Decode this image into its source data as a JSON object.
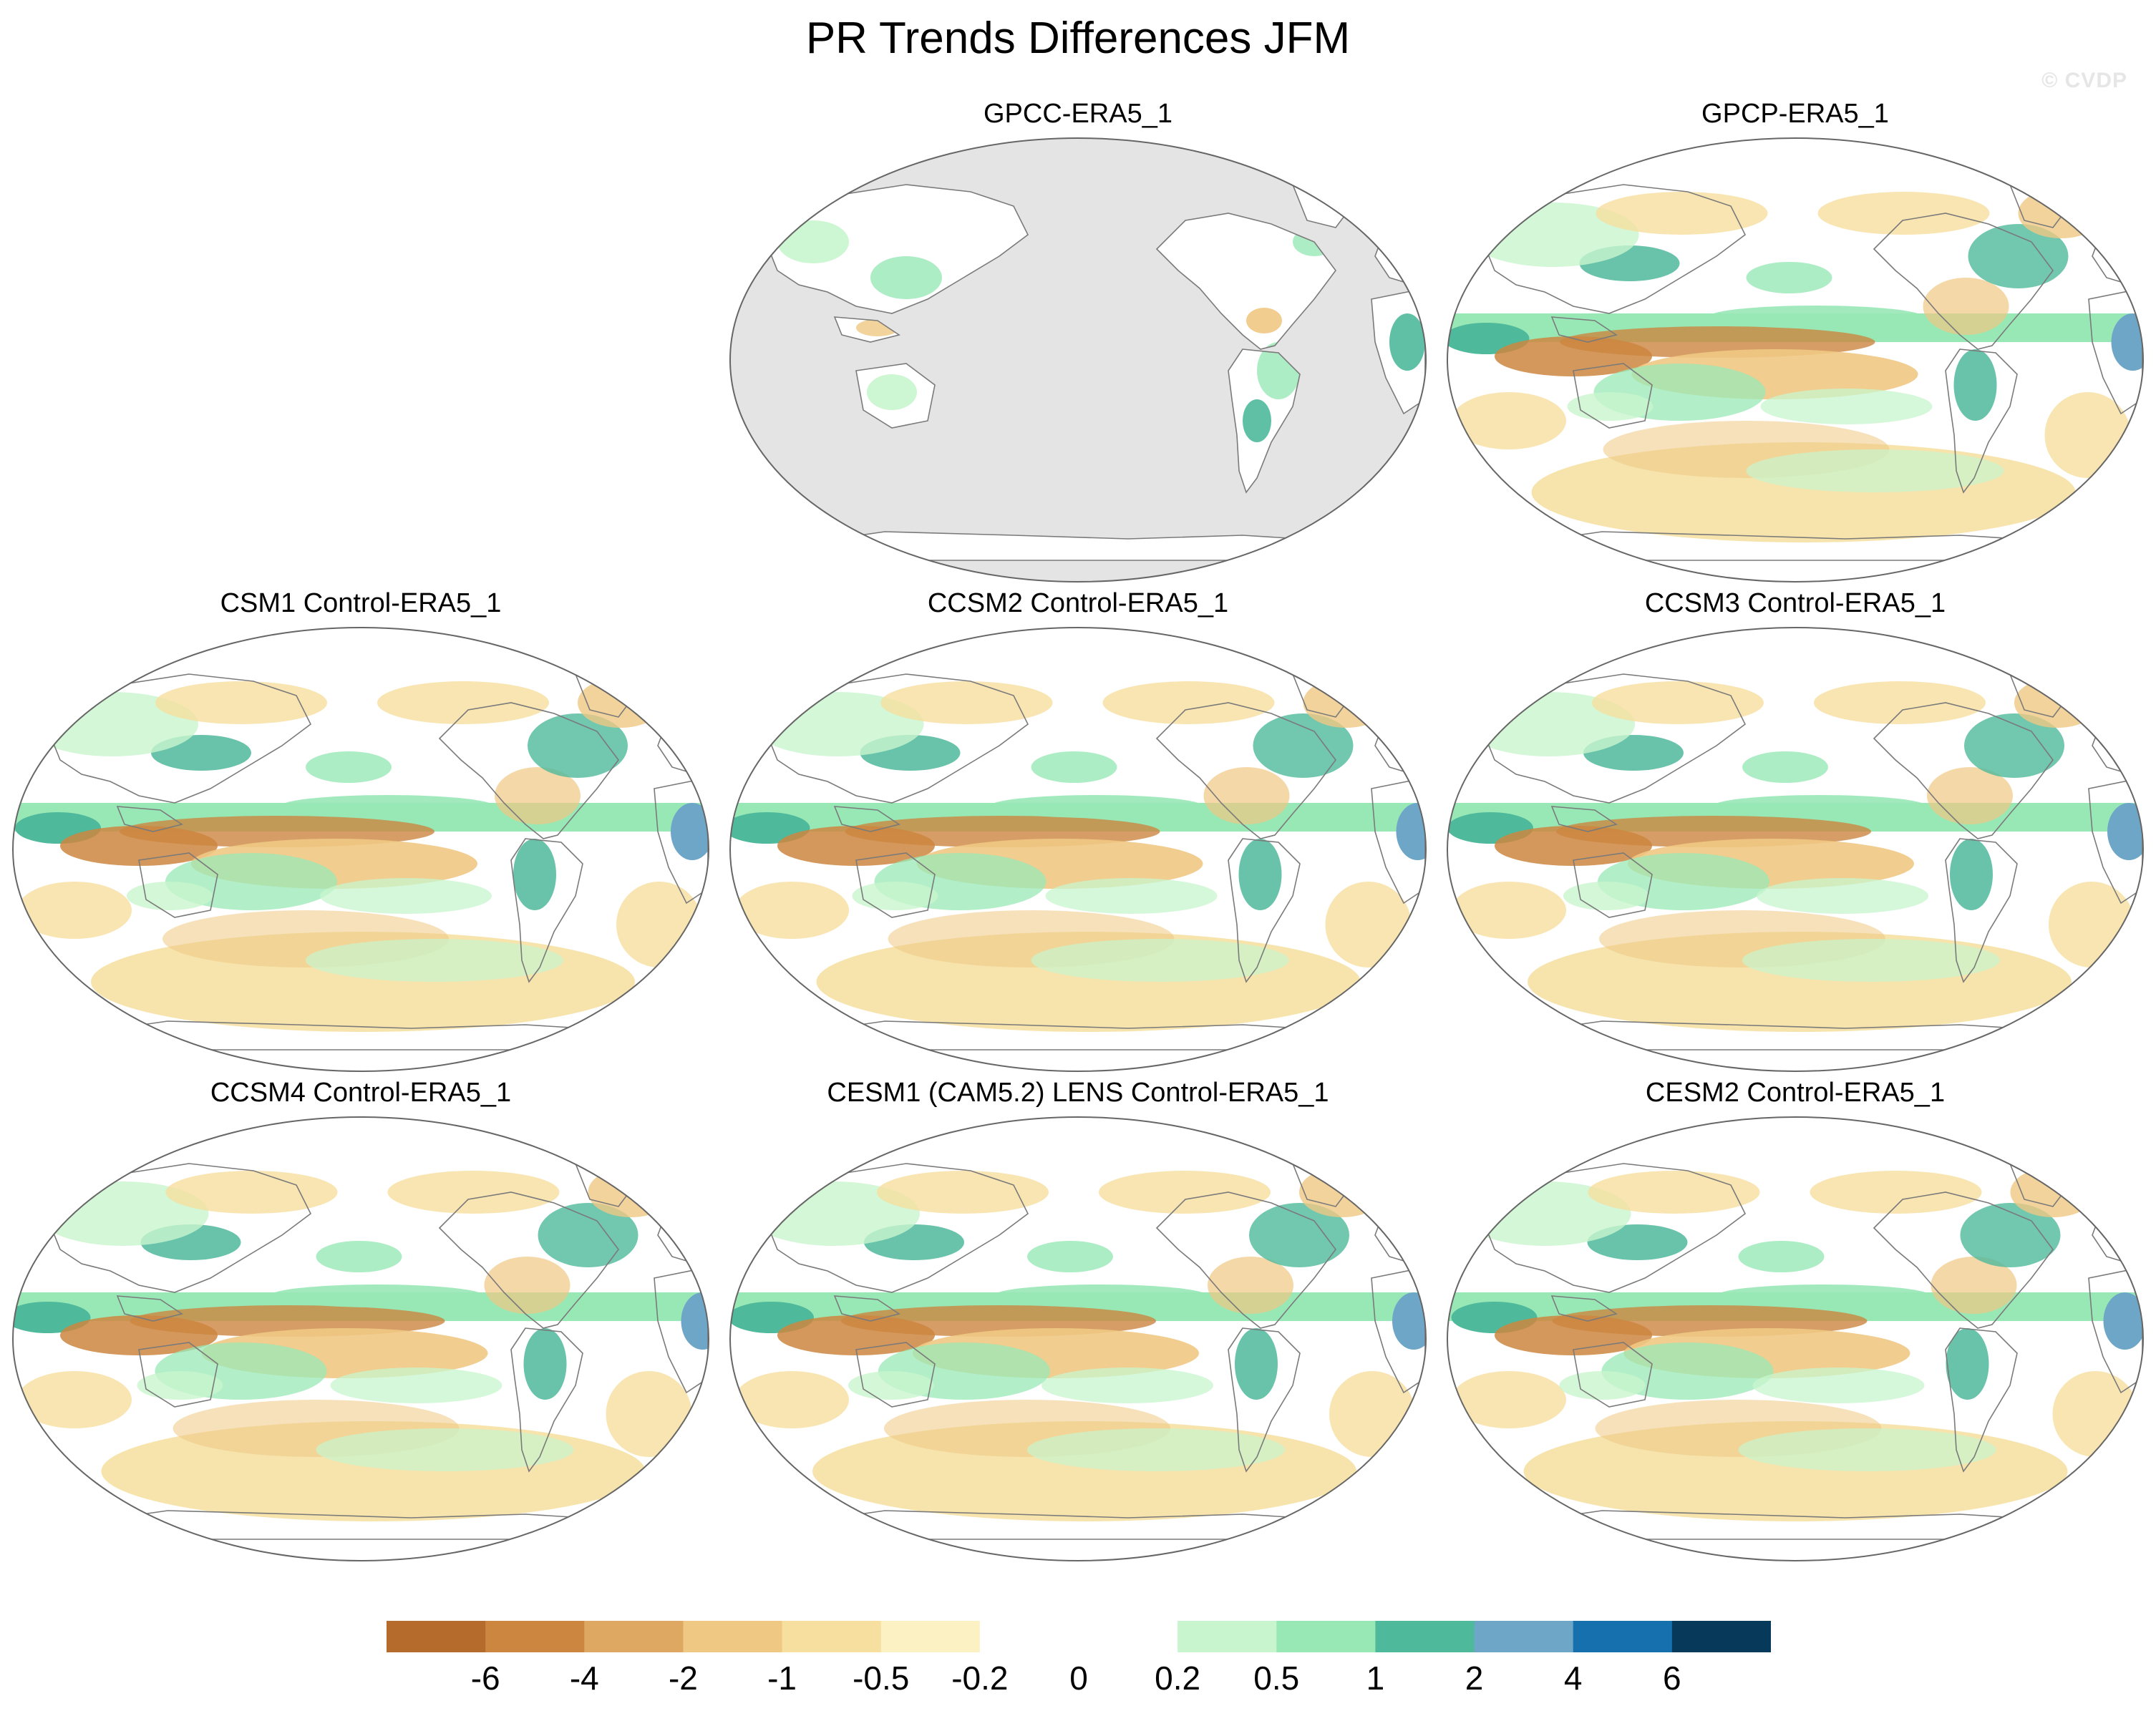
{
  "figure": {
    "title": "PR Trends Differences JFM",
    "watermark": "© CVDP"
  },
  "panels": [
    {
      "id": "gpcc",
      "title": "GPCC-ERA5_1",
      "land_only": true
    },
    {
      "id": "gpcp",
      "title": "GPCP-ERA5_1",
      "land_only": false
    },
    {
      "id": "csm1",
      "title": "CSM1 Control-ERA5_1",
      "land_only": false
    },
    {
      "id": "ccsm2",
      "title": "CCSM2 Control-ERA5_1",
      "land_only": false
    },
    {
      "id": "ccsm3",
      "title": "CCSM3 Control-ERA5_1",
      "land_only": false
    },
    {
      "id": "ccsm4",
      "title": "CCSM4 Control-ERA5_1",
      "land_only": false
    },
    {
      "id": "cesm1",
      "title": "CESM1 (CAM5.2) LENS Control-ERA5_1",
      "land_only": false
    },
    {
      "id": "cesm2",
      "title": "CESM2 Control-ERA5_1",
      "land_only": false
    }
  ],
  "colorbar": {
    "labels": [
      "-6",
      "-4",
      "-2",
      "-1",
      "-0.5",
      "-0.2",
      "0",
      "0.2",
      "0.5",
      "1",
      "2",
      "4",
      "6"
    ],
    "colors": [
      "#b56b2c",
      "#cc8640",
      "#dfa862",
      "#efc883",
      "#f6df9f",
      "#fbf1c2",
      "#ffffff",
      "#ffffff",
      "#c8f5cd",
      "#98e8b6",
      "#4fb99b",
      "#6ea6c8",
      "#1670ad",
      "#073a5a"
    ]
  },
  "map_colors": {
    "ocean_land_only_panel": "#e4e4e4",
    "coastline": "#7a7a7a",
    "dry_strong": "#cc8640",
    "dry": "#efc883",
    "dry_weak": "#f6df9f",
    "wet_weak": "#c8f5cd",
    "wet": "#98e8b6",
    "wet_strong": "#4fb99b",
    "wet_max": "#6ea6c8"
  }
}
